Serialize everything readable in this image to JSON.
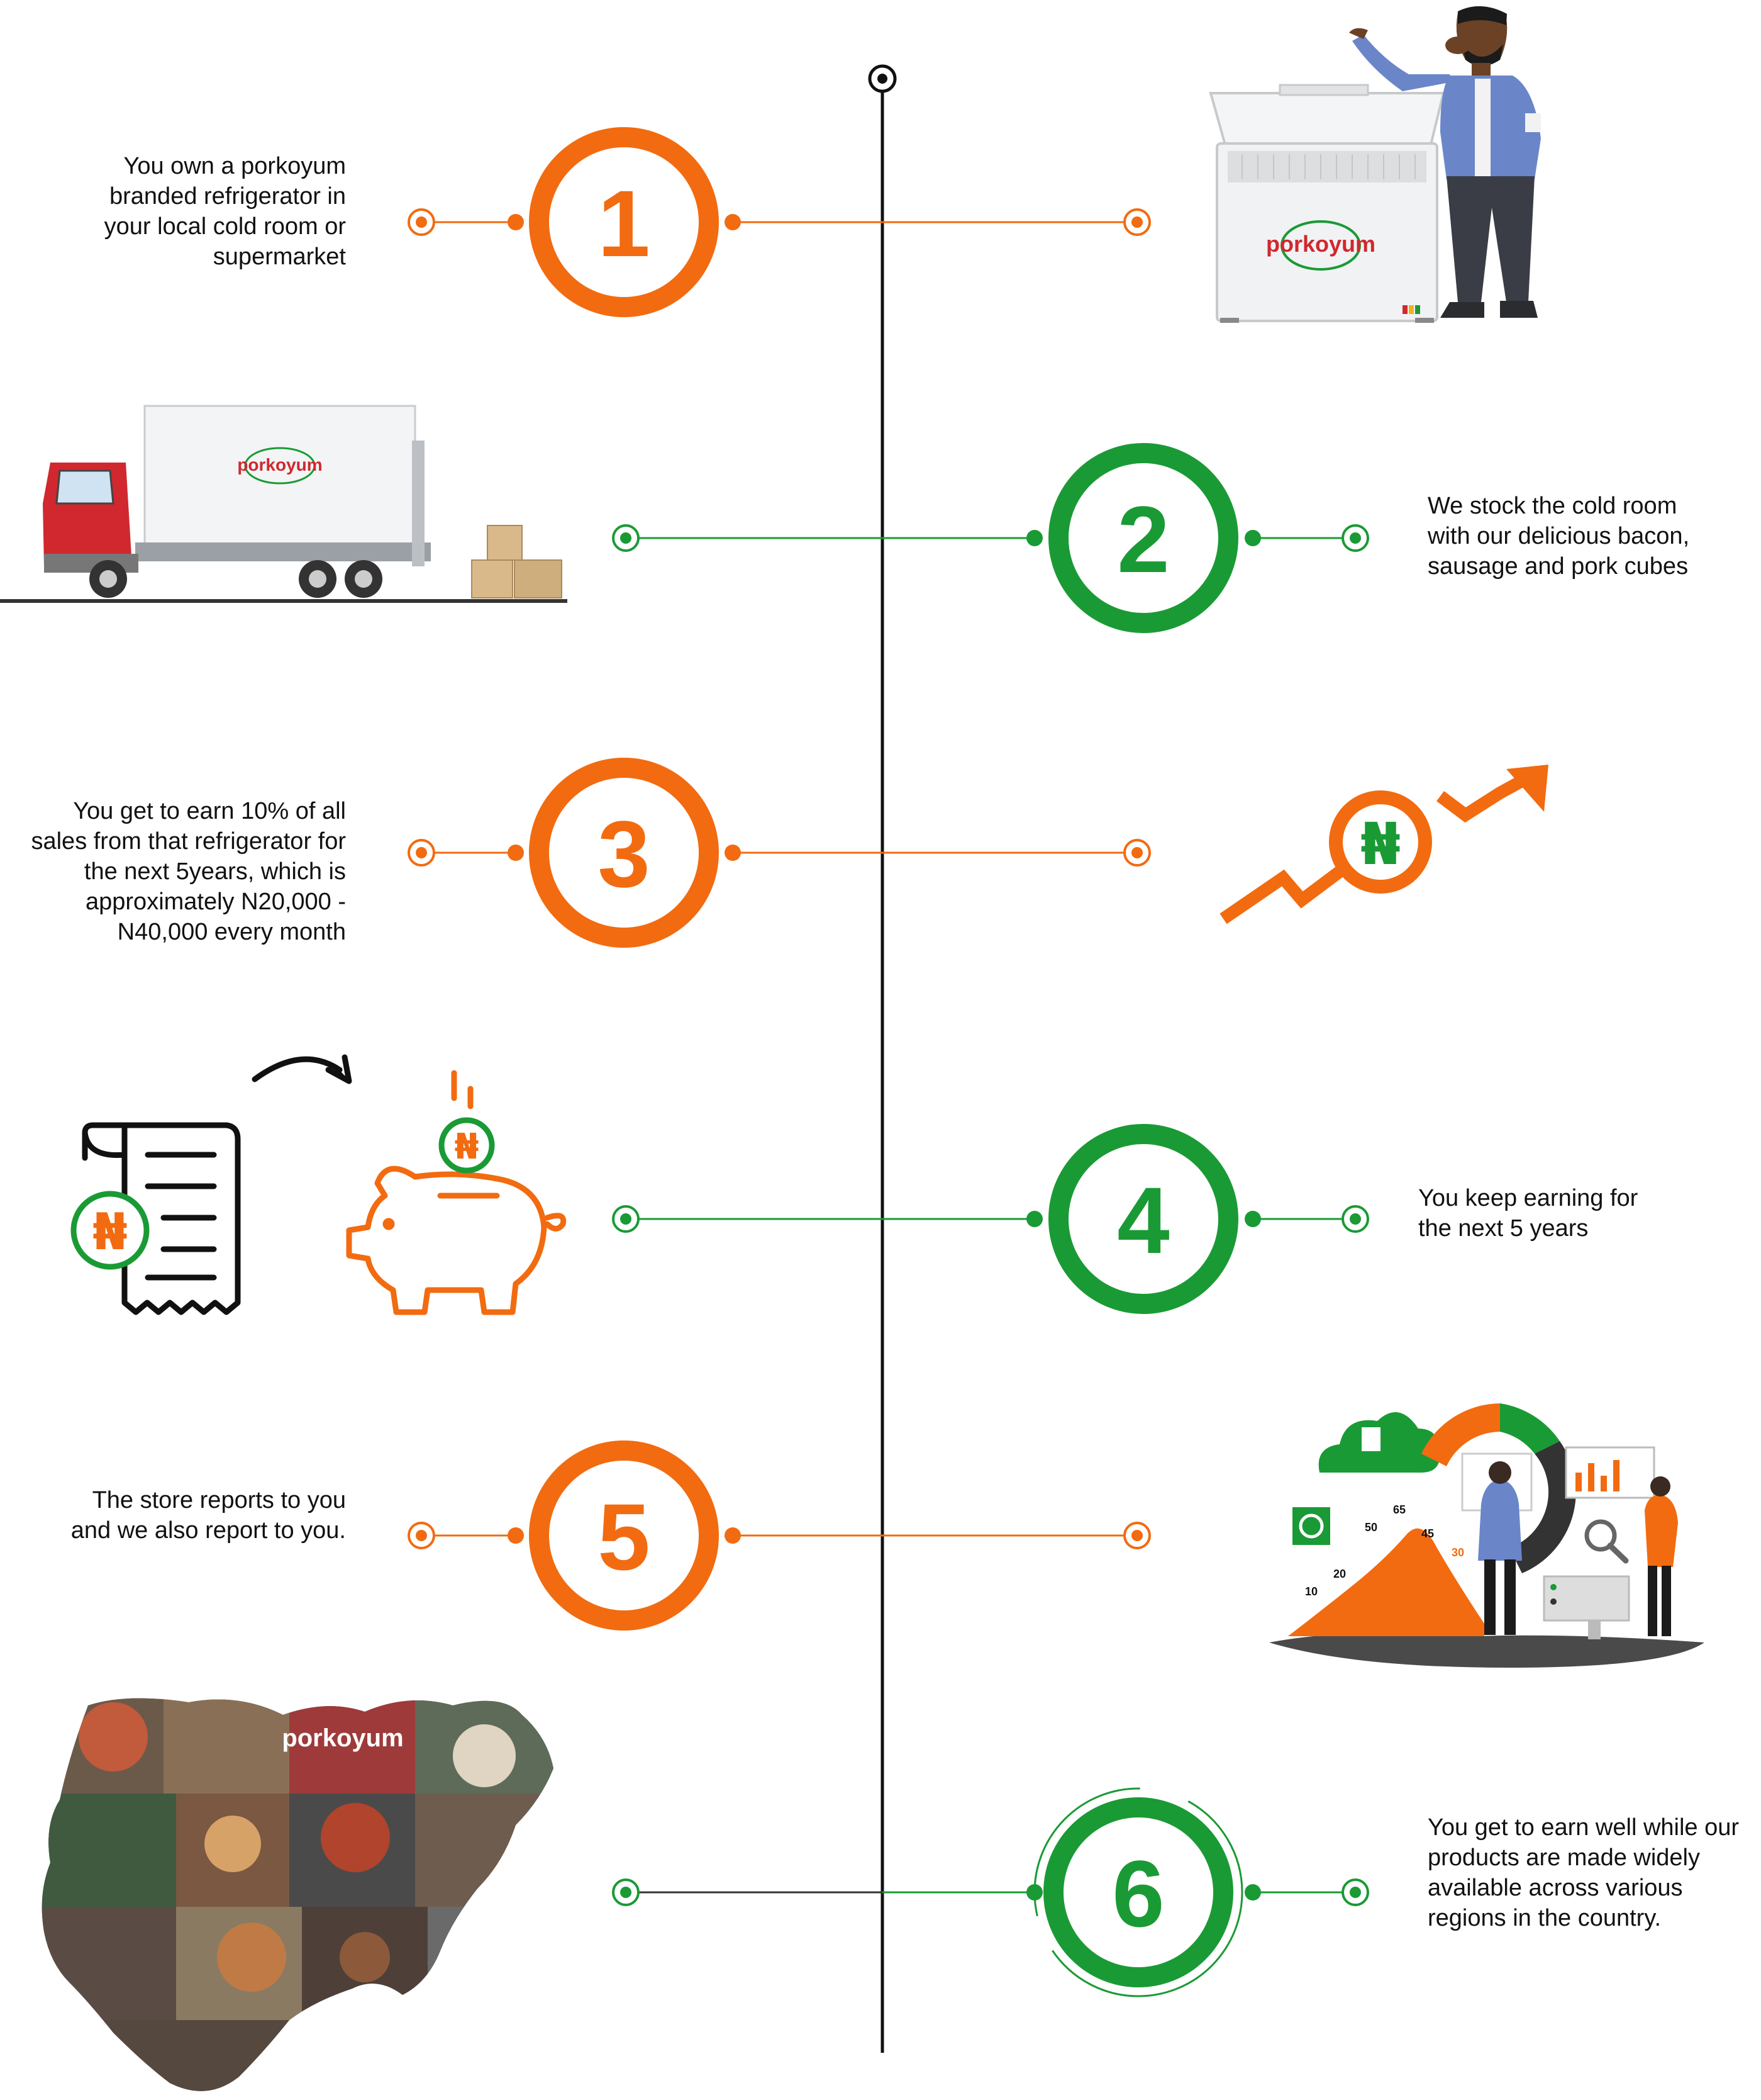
{
  "colors": {
    "orange": "#f26b10",
    "green": "#1a9a35",
    "line": "#111111",
    "brand_red": "#d0282e"
  },
  "brand": {
    "logo_text": "porkoyum"
  },
  "steps": [
    {
      "number": "1",
      "color": "orange",
      "side": "left",
      "lines": [
        "You own a porkoyum",
        "branded refrigerator in",
        "your local cold room or",
        "supermarket"
      ],
      "illustration": "freezer-with-man"
    },
    {
      "number": "2",
      "color": "green",
      "side": "right",
      "lines": [
        "We stock the cold room",
        "with our delicious bacon,",
        "sausage and pork cubes"
      ],
      "illustration": "delivery-truck"
    },
    {
      "number": "3",
      "color": "orange",
      "side": "left",
      "lines": [
        "You get to earn 10% of all",
        "sales from that refrigerator for",
        "the next 5years, which is",
        "approximately N20,000 -",
        "N40,000 every month"
      ],
      "illustration": "naira-growth-arrow"
    },
    {
      "number": "4",
      "color": "green",
      "side": "right",
      "lines": [
        "You keep earning for",
        "the next 5 years"
      ],
      "illustration": "receipt-to-piggy-bank"
    },
    {
      "number": "5",
      "color": "orange",
      "side": "left",
      "lines": [
        "The store reports to you",
        "and we also report to you."
      ],
      "illustration": "analytics-report"
    },
    {
      "number": "6",
      "color": "green",
      "side": "right",
      "lines": [
        "You get to earn well while our",
        "products are made widely",
        "available across various",
        "regions in the country."
      ],
      "illustration": "nigeria-map-collage"
    }
  ],
  "currency_symbol": "₦",
  "report_chart_labels": [
    "10",
    "20",
    "50",
    "65",
    "45",
    "30"
  ]
}
